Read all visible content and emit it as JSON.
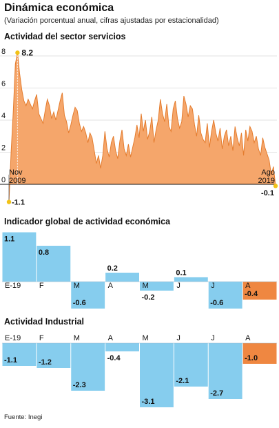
{
  "header": {
    "title": "Dinámica económica",
    "subtitle": "(Variación porcentual anual, cifras ajustadas por estacionalidad)"
  },
  "sections": {
    "services": "Actividad del sector servicios",
    "igae": "Indicador global de actividad económica",
    "industrial": "Actividad Industrial"
  },
  "footer": {
    "source": "Fuente: Inegi"
  },
  "colors": {
    "area": "#f5a66b",
    "area_line": "#e47c2e",
    "bar": "#86cdee",
    "bar_highlight": "#ef8741",
    "marker": "#f2c318"
  },
  "chart_data": [
    {
      "type": "area",
      "title": "Actividad del sector servicios",
      "ylim": [
        0,
        8.5
      ],
      "yticks": [
        0,
        2,
        4,
        6,
        8
      ],
      "start_label": [
        "Nov",
        "2009"
      ],
      "end_label": [
        "Ago",
        "2019"
      ],
      "annotations": {
        "min": "-1.1",
        "max": "8.2",
        "last": "-0.1"
      },
      "values": [
        -1.1,
        2.0,
        4.5,
        7.5,
        8.2,
        6.9,
        5.9,
        5.2,
        4.9,
        5.3,
        5.0,
        4.7,
        5.2,
        5.6,
        4.4,
        4.1,
        3.8,
        4.6,
        5.3,
        4.9,
        4.1,
        4.5,
        4.0,
        4.6,
        5.2,
        5.7,
        4.3,
        3.9,
        3.2,
        3.7,
        4.3,
        4.8,
        4.6,
        3.8,
        3.3,
        3.6,
        3.2,
        2.6,
        3.2,
        2.9,
        2.1,
        1.3,
        1.8,
        1.0,
        1.8,
        3.3,
        2.2,
        1.7,
        2.6,
        3.0,
        2.1,
        1.6,
        2.7,
        3.4,
        2.2,
        1.8,
        2.5,
        1.7,
        2.3,
        2.9,
        3.7,
        2.9,
        4.4,
        3.3,
        4.0,
        2.8,
        3.3,
        4.2,
        2.6,
        3.4,
        4.0,
        5.3,
        4.4,
        3.9,
        5.0,
        3.6,
        3.3,
        4.7,
        5.2,
        4.1,
        3.5,
        3.9,
        5.5,
        5.0,
        4.2,
        4.9,
        4.7,
        3.7,
        3.0,
        4.3,
        3.2,
        2.8,
        2.6,
        3.8,
        2.3,
        3.3,
        4.0,
        3.2,
        2.7,
        3.5,
        2.2,
        3.0,
        3.4,
        2.4,
        3.0,
        2.1,
        3.6,
        2.9,
        2.4,
        3.2,
        1.8,
        3.4,
        2.7,
        3.6,
        3.3,
        2.6,
        3.0,
        2.2,
        1.8,
        2.9,
        2.3,
        1.9,
        1.5,
        0.6,
        1.1,
        -0.1
      ]
    },
    {
      "type": "bar",
      "title": "Indicador global de actividad económica",
      "categories": [
        "E-19",
        "F",
        "M",
        "A",
        "M",
        "J",
        "J",
        "A"
      ],
      "values": [
        1.1,
        0.8,
        -0.6,
        0.2,
        -0.2,
        0.1,
        -0.6,
        -0.4
      ],
      "labels": [
        "1.1",
        "0.8",
        "-0.6",
        "0.2",
        "-0.2",
        "0.1",
        "-0.6",
        "-0.4"
      ],
      "highlight": [
        7
      ]
    },
    {
      "type": "bar",
      "title": "Actividad Industrial",
      "categories": [
        "E-19",
        "F",
        "M",
        "A",
        "M",
        "J",
        "J",
        "A"
      ],
      "values": [
        -1.1,
        -1.2,
        -2.3,
        -0.4,
        -3.1,
        -2.1,
        -2.7,
        -1.0
      ],
      "labels": [
        "-1.1",
        "-1.2",
        "-2.3",
        "-0.4",
        "-3.1",
        "-2.1",
        "-2.7",
        "-1.0"
      ],
      "highlight": [
        7
      ]
    }
  ]
}
